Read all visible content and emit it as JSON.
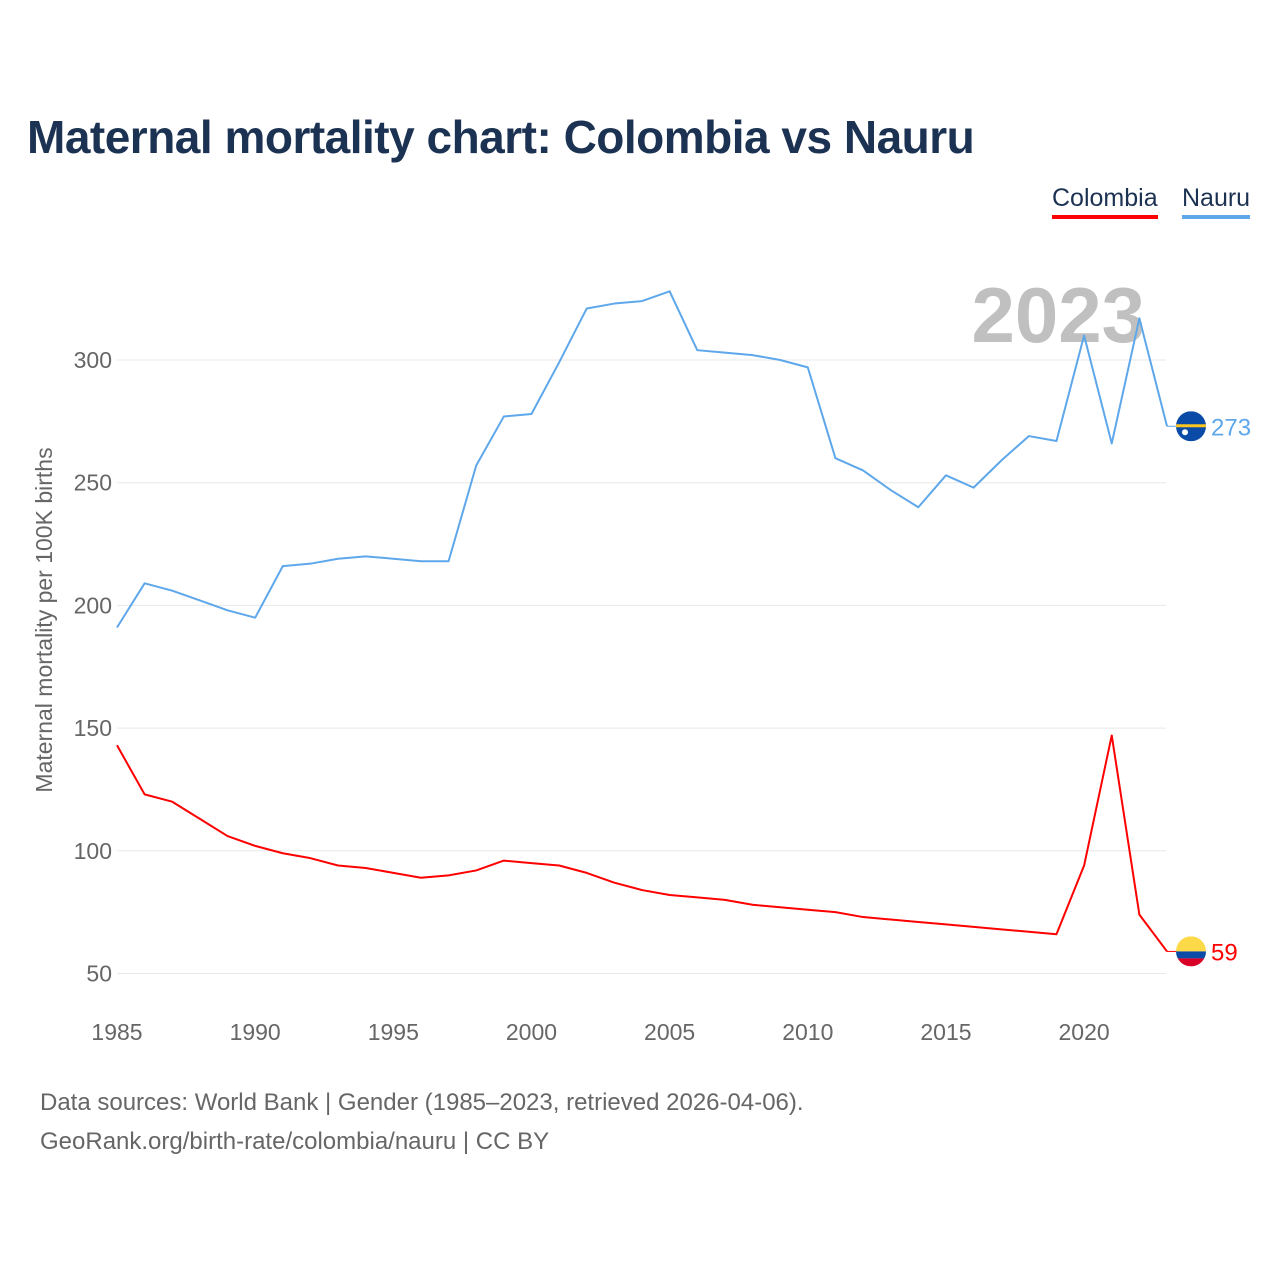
{
  "chart_data": {
    "type": "line",
    "title": "Maternal mortality chart: Colombia vs Nauru",
    "ylabel": "Maternal mortality per 100K births",
    "xlabel": "",
    "ylim": [
      40,
      340
    ],
    "xlim": [
      1985,
      2023
    ],
    "yticks": [
      50,
      100,
      150,
      200,
      250,
      300
    ],
    "xticks": [
      1985,
      1990,
      1995,
      2000,
      2005,
      2010,
      2015,
      2020
    ],
    "grid": true,
    "legend_placement": "top-right",
    "year_label": "2023",
    "x": [
      1985,
      1986,
      1987,
      1988,
      1989,
      1990,
      1991,
      1992,
      1993,
      1994,
      1995,
      1996,
      1997,
      1998,
      1999,
      2000,
      2001,
      2002,
      2003,
      2004,
      2005,
      2006,
      2007,
      2008,
      2009,
      2010,
      2011,
      2012,
      2013,
      2014,
      2015,
      2016,
      2017,
      2018,
      2019,
      2020,
      2021,
      2022,
      2023
    ],
    "series": [
      {
        "name": "Colombia",
        "color": "#ff0000",
        "end_label": "59",
        "values": [
          143,
          123,
          120,
          113,
          106,
          102,
          99,
          97,
          94,
          93,
          91,
          89,
          90,
          92,
          96,
          95,
          94,
          91,
          87,
          84,
          82,
          81,
          80,
          78,
          77,
          76,
          75,
          73,
          72,
          71,
          70,
          69,
          68,
          67,
          66,
          94,
          147,
          74,
          59
        ]
      },
      {
        "name": "Nauru",
        "color": "#5ea7ea",
        "end_label": "273",
        "values": [
          191,
          209,
          206,
          202,
          198,
          195,
          216,
          217,
          219,
          220,
          219,
          218,
          218,
          257,
          277,
          278,
          299,
          321,
          323,
          324,
          328,
          304,
          303,
          302,
          300,
          297,
          260,
          255,
          247,
          240,
          253,
          248,
          259,
          269,
          267,
          310,
          266,
          317,
          273
        ]
      }
    ]
  },
  "legend": {
    "colombia": "Colombia",
    "nauru": "Nauru"
  },
  "footer": {
    "line1": "Data sources: World Bank | Gender (1985–2023, retrieved 2026-04-06).",
    "line2": "GeoRank.org/birth-rate/colombia/nauru | CC BY"
  }
}
